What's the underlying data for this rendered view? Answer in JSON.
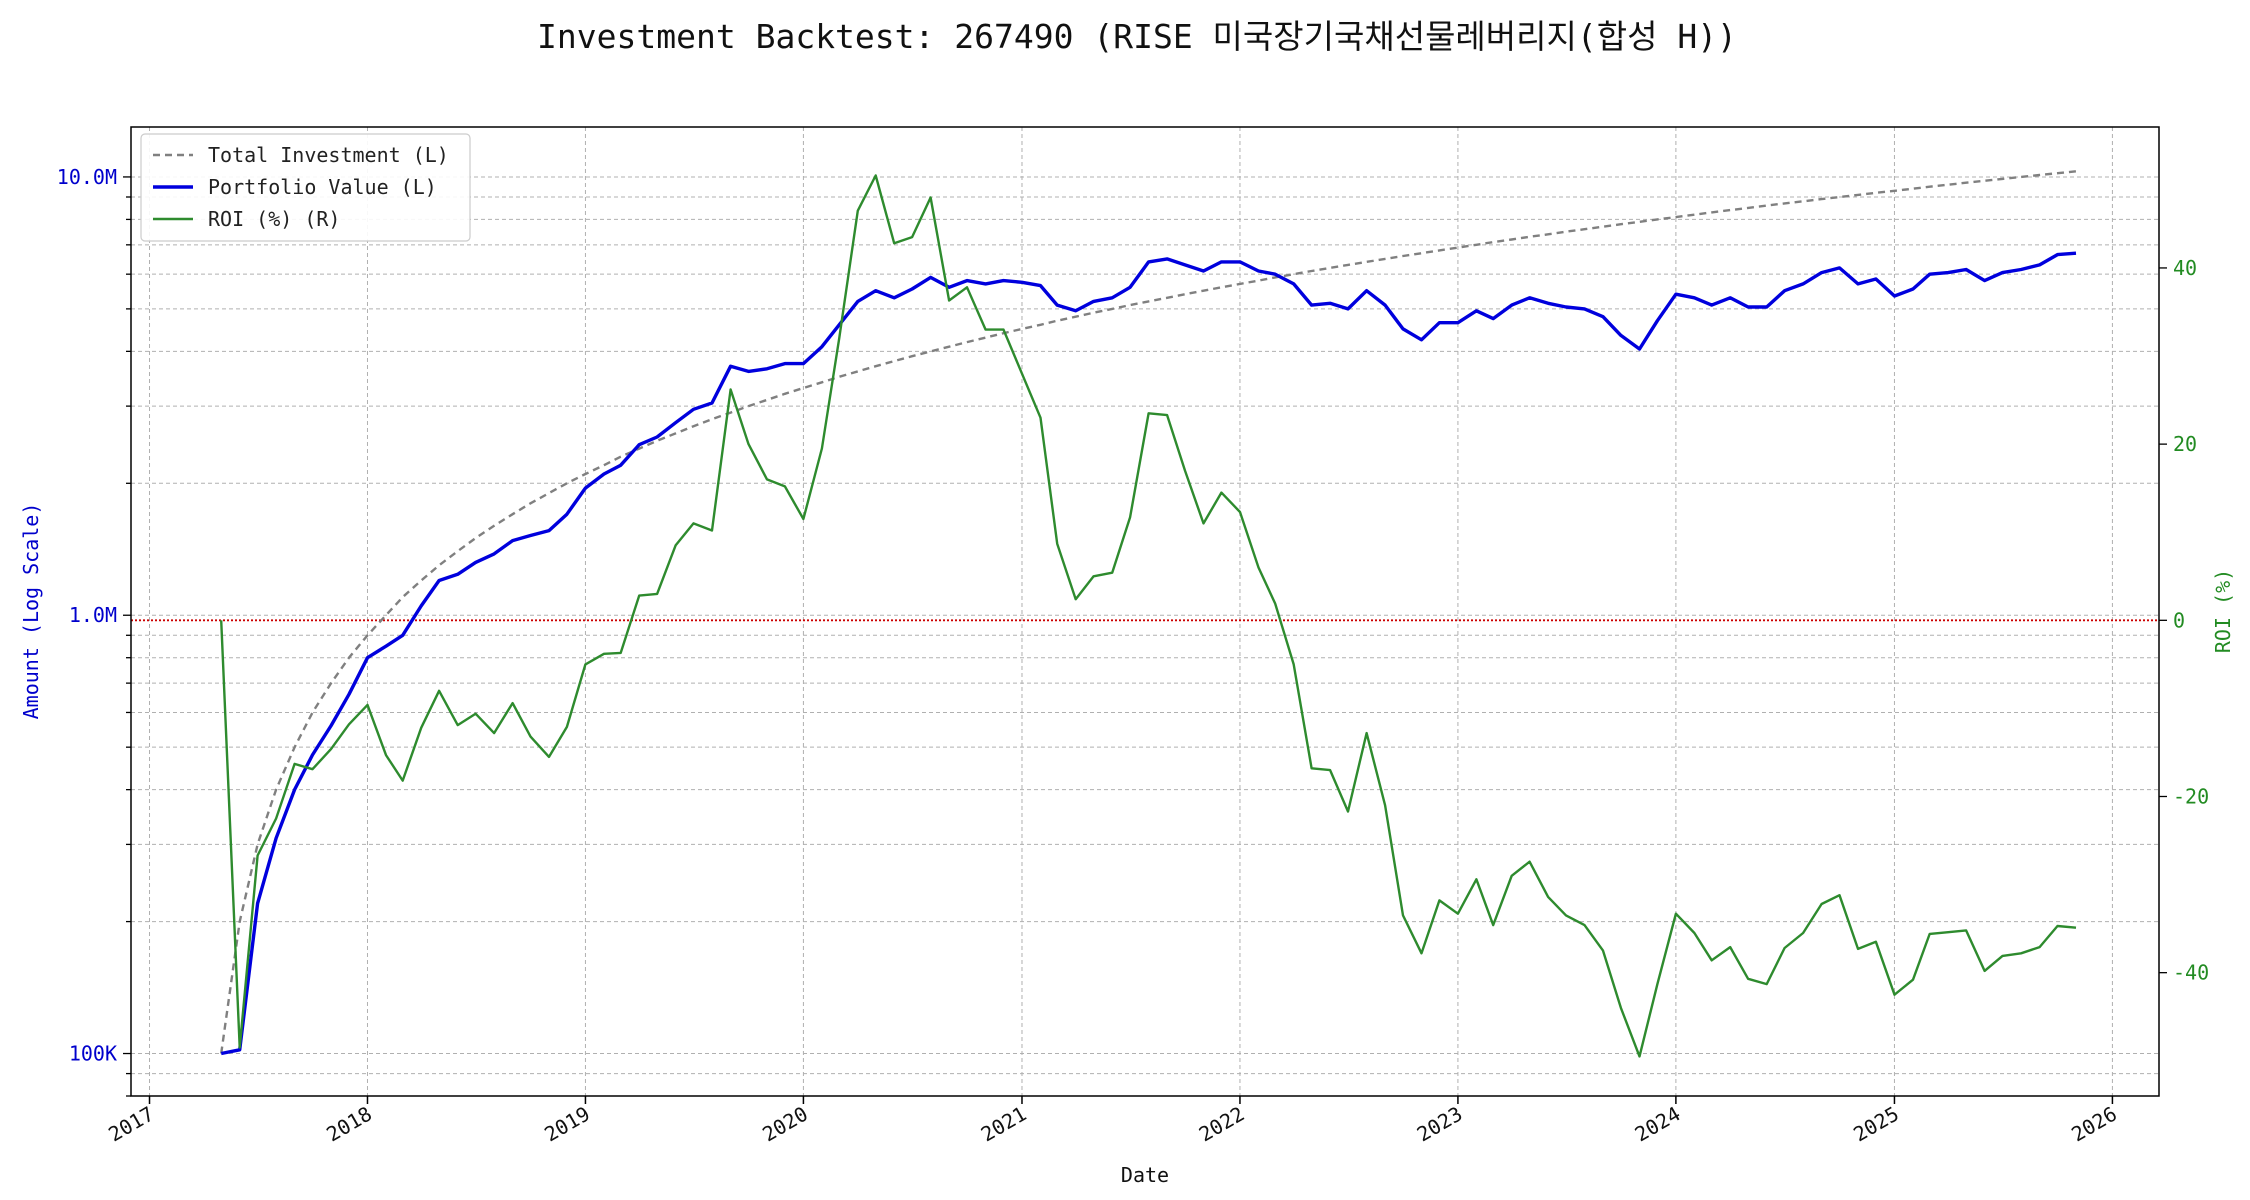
{
  "chart_data": {
    "type": "line",
    "title": "Investment Backtest: 267490 (RISE 미국장기국채선물레버리지(합성 H))",
    "xlabel": "Date",
    "ylabel_left": "Amount (Log Scale)",
    "ylabel_right": "ROI (%)",
    "left_scale": "log",
    "ylim_left": [
      80000,
      13000000
    ],
    "ylim_right": [
      -54,
      56
    ],
    "xlim": [
      "2016-12-01",
      "2026-03-20"
    ],
    "x_ticks": [
      "2017",
      "2018",
      "2019",
      "2020",
      "2021",
      "2022",
      "2023",
      "2024",
      "2025",
      "2026"
    ],
    "x_tick_dates": [
      "2017-01-01",
      "2018-01-01",
      "2019-01-01",
      "2020-01-01",
      "2021-01-01",
      "2022-01-01",
      "2023-01-01",
      "2024-01-01",
      "2025-01-01",
      "2026-01-01"
    ],
    "left_ticks": [
      {
        "label": "100K",
        "value": 100000
      },
      {
        "label": "1.0M",
        "value": 1000000
      },
      {
        "label": "10.0M",
        "value": 10000000
      }
    ],
    "right_ticks": [
      -40,
      -20,
      0,
      20,
      40
    ],
    "grid": true,
    "legend_position": "top-left",
    "reference_line": {
      "axis": "right",
      "value": 0,
      "color": "#cc0000",
      "style": "dotted"
    },
    "colors": {
      "total_investment": "#808080",
      "portfolio_value": "#0000dd",
      "roi": "#2e8b2e",
      "left_axis": "#0000cc",
      "right_axis": "#228b22"
    },
    "x": [
      "2017-05-01",
      "2017-06-01",
      "2017-07-01",
      "2017-08-01",
      "2017-09-01",
      "2017-10-01",
      "2017-11-01",
      "2017-12-01",
      "2018-01-01",
      "2018-02-01",
      "2018-03-01",
      "2018-04-01",
      "2018-05-01",
      "2018-06-01",
      "2018-07-01",
      "2018-08-01",
      "2018-09-01",
      "2018-10-01",
      "2018-11-01",
      "2018-12-01",
      "2019-01-01",
      "2019-02-01",
      "2019-03-01",
      "2019-04-01",
      "2019-05-01",
      "2019-06-01",
      "2019-07-01",
      "2019-08-01",
      "2019-09-01",
      "2019-10-01",
      "2019-11-01",
      "2019-12-01",
      "2020-01-01",
      "2020-02-01",
      "2020-03-01",
      "2020-04-01",
      "2020-05-01",
      "2020-06-01",
      "2020-07-01",
      "2020-08-01",
      "2020-09-01",
      "2020-10-01",
      "2020-11-01",
      "2020-12-01",
      "2021-01-01",
      "2021-02-01",
      "2021-03-01",
      "2021-04-01",
      "2021-05-01",
      "2021-06-01",
      "2021-07-01",
      "2021-08-01",
      "2021-09-01",
      "2021-10-01",
      "2021-11-01",
      "2021-12-01",
      "2022-01-01",
      "2022-02-01",
      "2022-03-01",
      "2022-04-01",
      "2022-05-01",
      "2022-06-01",
      "2022-07-01",
      "2022-08-01",
      "2022-09-01",
      "2022-10-01",
      "2022-11-01",
      "2022-12-01",
      "2023-01-01",
      "2023-02-01",
      "2023-03-01",
      "2023-04-01",
      "2023-05-01",
      "2023-06-01",
      "2023-07-01",
      "2023-08-01",
      "2023-09-01",
      "2023-10-01",
      "2023-11-01",
      "2023-12-01",
      "2024-01-01",
      "2024-02-01",
      "2024-03-01",
      "2024-04-01",
      "2024-05-01",
      "2024-06-01",
      "2024-07-01",
      "2024-08-01",
      "2024-09-01",
      "2024-10-01",
      "2024-11-01",
      "2024-12-01",
      "2025-01-01",
      "2025-02-01",
      "2025-03-01",
      "2025-04-01",
      "2025-05-01",
      "2025-06-01",
      "2025-07-01",
      "2025-08-01",
      "2025-09-01",
      "2025-10-01",
      "2025-11-01"
    ],
    "series": [
      {
        "name": "Total Investment (L)",
        "axis": "left",
        "style": "dashed",
        "values": [
          100000,
          200000,
          300000,
          400000,
          500000,
          600000,
          700000,
          800000,
          900000,
          1000000,
          1100000,
          1200000,
          1300000,
          1400000,
          1500000,
          1600000,
          1700000,
          1800000,
          1900000,
          2000000,
          2100000,
          2200000,
          2300000,
          2400000,
          2500000,
          2600000,
          2700000,
          2800000,
          2900000,
          3000000,
          3100000,
          3200000,
          3300000,
          3400000,
          3500000,
          3600000,
          3700000,
          3800000,
          3900000,
          4000000,
          4100000,
          4200000,
          4300000,
          4400000,
          4500000,
          4600000,
          4700000,
          4800000,
          4900000,
          5000000,
          5100000,
          5200000,
          5300000,
          5400000,
          5500000,
          5600000,
          5700000,
          5800000,
          5900000,
          6000000,
          6100000,
          6200000,
          6300000,
          6400000,
          6500000,
          6600000,
          6700000,
          6800000,
          6900000,
          7000000,
          7100000,
          7200000,
          7300000,
          7400000,
          7500000,
          7600000,
          7700000,
          7800000,
          7900000,
          8000000,
          8100000,
          8200000,
          8300000,
          8400000,
          8500000,
          8600000,
          8700000,
          8800000,
          8900000,
          9000000,
          9100000,
          9200000,
          9300000,
          9400000,
          9500000,
          9600000,
          9700000,
          9800000,
          9900000,
          10000000,
          10100000,
          10200000,
          10300000
        ]
      },
      {
        "name": "Portfolio Value (L)",
        "axis": "left",
        "style": "solid",
        "values": [
          100000,
          102000,
          220000,
          310000,
          400000,
          480000,
          560000,
          660000,
          800000,
          850000,
          900000,
          1050000,
          1200000,
          1240000,
          1320000,
          1380000,
          1480000,
          1520000,
          1560000,
          1700000,
          1950000,
          2100000,
          2200000,
          2450000,
          2550000,
          2750000,
          2950000,
          3050000,
          3700000,
          3600000,
          3650000,
          3750000,
          3750000,
          4100000,
          4600000,
          5200000,
          5500000,
          5300000,
          5550000,
          5900000,
          5600000,
          5800000,
          5700000,
          5800000,
          5750000,
          5650000,
          5100000,
          4950000,
          5200000,
          5300000,
          5600000,
          6400000,
          6500000,
          6300000,
          6100000,
          6400000,
          6400000,
          6100000,
          6000000,
          5700000,
          5100000,
          5150000,
          5000000,
          5500000,
          5100000,
          4500000,
          4250000,
          4650000,
          4650000,
          4950000,
          4750000,
          5100000,
          5300000,
          5150000,
          5050000,
          5000000,
          4800000,
          4350000,
          4050000,
          4700000,
          5400000,
          5300000,
          5100000,
          5300000,
          5050000,
          5050000,
          5500000,
          5700000,
          6050000,
          6200000,
          5700000,
          5850000,
          5350000,
          5550000,
          6000000,
          6050000,
          6150000,
          5800000,
          6050000,
          6150000,
          6300000,
          6650000,
          6700000
        ]
      },
      {
        "name": "ROI (%) (R)",
        "axis": "right",
        "style": "solid",
        "values": [
          0,
          -48.5,
          -26.7,
          -22.5,
          -16.3,
          -16.9,
          -14.6,
          -11.8,
          -9.6,
          -15.3,
          -18.2,
          -12.2,
          -8.0,
          -11.9,
          -10.6,
          -12.8,
          -9.4,
          -13.2,
          -15.5,
          -12.1,
          -5.0,
          -3.8,
          -3.7,
          2.8,
          3.0,
          8.5,
          11.0,
          10.2,
          26.2,
          20.0,
          16.0,
          15.2,
          11.5,
          19.5,
          32.0,
          46.5,
          50.5,
          42.8,
          43.5,
          48.0,
          36.3,
          37.8,
          33.0,
          33.0,
          28.0,
          23.0,
          8.7,
          2.4,
          5.0,
          5.4,
          11.7,
          23.5,
          23.3,
          17.0,
          11.0,
          14.5,
          12.3,
          6.0,
          1.9,
          -5.0,
          -16.8,
          -17.0,
          -21.7,
          -12.8,
          -21.0,
          -33.5,
          -37.8,
          -31.8,
          -33.3,
          -29.4,
          -34.6,
          -29.0,
          -27.4,
          -31.4,
          -33.5,
          -34.6,
          -37.5,
          -44.0,
          -49.5,
          -41.3,
          -33.3,
          -35.5,
          -38.6,
          -37.1,
          -40.7,
          -41.3,
          -37.2,
          -35.5,
          -32.2,
          -31.2,
          -37.3,
          -36.5,
          -42.5,
          -40.8,
          -35.6,
          -35.4,
          -35.2,
          -39.8,
          -38.1,
          -37.8,
          -37.1,
          -34.7,
          -34.9
        ]
      }
    ]
  }
}
